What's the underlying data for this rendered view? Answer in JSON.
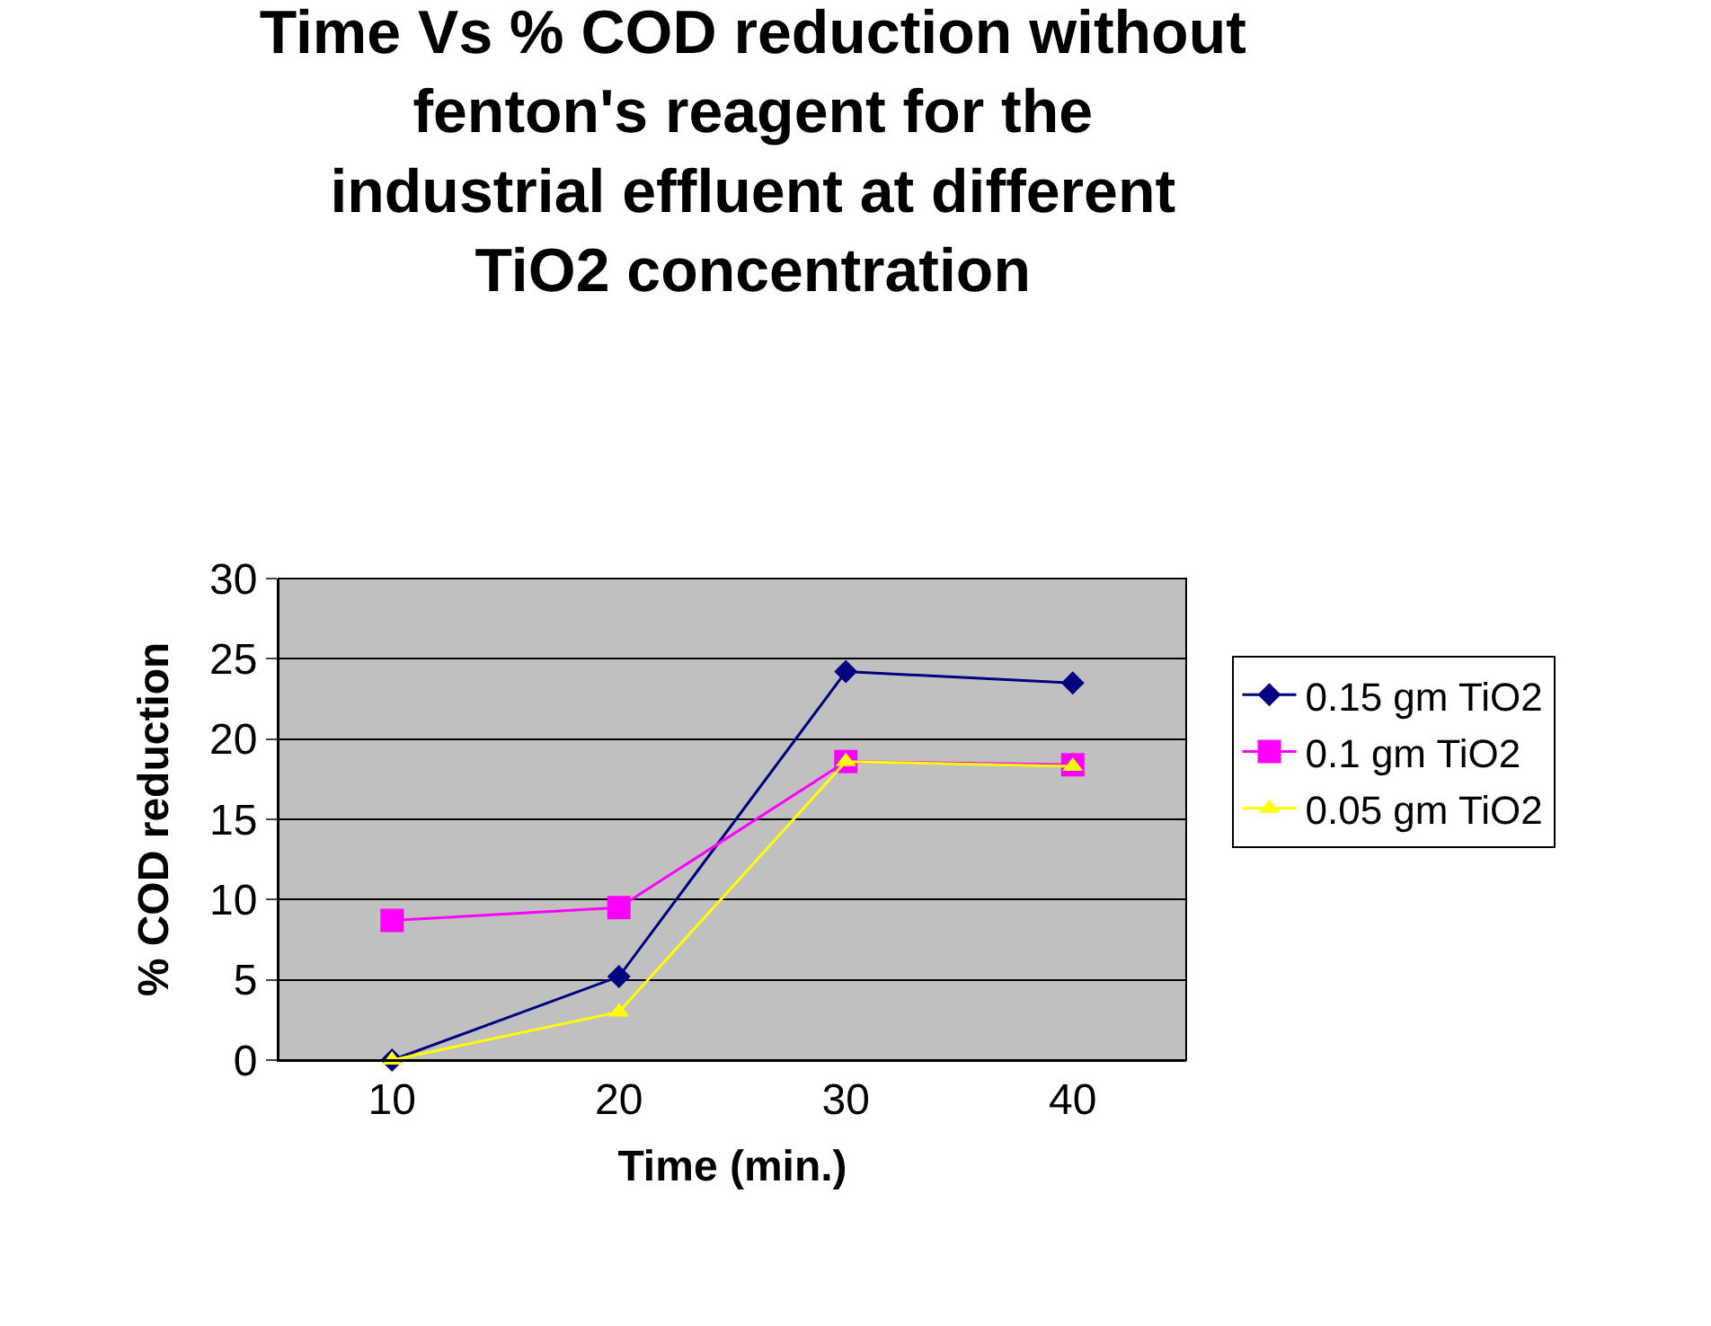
{
  "chart_data": {
    "type": "line",
    "title": "Time Vs % COD reduction without fenton's reagent for the industrial effluent at different TiO2 concentration",
    "xlabel": "Time (min.)",
    "ylabel": "% COD reduction",
    "categories": [
      "10",
      "20",
      "30",
      "40"
    ],
    "series": [
      {
        "name": "0.15 gm TiO2",
        "color": "#000080",
        "marker": "diamond",
        "values": [
          0,
          5.2,
          24.2,
          23.5
        ]
      },
      {
        "name": "0.1 gm TiO2",
        "color": "#ff00ff",
        "marker": "square",
        "values": [
          8.7,
          9.5,
          18.6,
          18.4
        ]
      },
      {
        "name": "0.05 gm TiO2",
        "color": "#ffff00",
        "marker": "triangle",
        "values": [
          0,
          3.0,
          18.6,
          18.3
        ]
      }
    ],
    "ylim": [
      0,
      30
    ],
    "yticks": [
      0,
      5,
      10,
      15,
      20,
      25,
      30
    ],
    "grid": "y",
    "legend": "right",
    "line_style": "solid"
  }
}
